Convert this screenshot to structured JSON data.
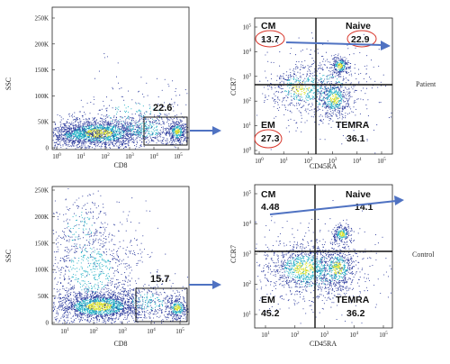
{
  "colors": {
    "arrow": "#4f72c2",
    "highlight_oval": "#d8362b",
    "density_low": "#2b3a9c",
    "density_mid": "#21b0c4",
    "density_high": "#d8e02a"
  },
  "rows": [
    {
      "condition_label": "Patient",
      "scatter": {
        "xlabel": "CD8",
        "ylabel": "SSC",
        "ytick_labels": [
          "0",
          "50K",
          "100K",
          "150K",
          "200K",
          "250K"
        ],
        "xtick_labels": [
          "10^0",
          "10^1",
          "10^2",
          "10^3",
          "10^4",
          "10^5"
        ],
        "gate_value": "22.6"
      },
      "quadrant": {
        "xlabel": "CD45RA",
        "ylabel": "CCR7",
        "ytick_labels": [
          "10^0",
          "10^1",
          "10^2",
          "10^3",
          "10^4",
          "10^5"
        ],
        "xtick_labels": [
          "10^0",
          "10^1",
          "10^2",
          "10^3",
          "10^4",
          "10^5"
        ],
        "cm": {
          "label": "CM",
          "value": "13.7"
        },
        "naive": {
          "label": "Naive",
          "value": "22.9"
        },
        "em": {
          "label": "EM",
          "value": "27.3"
        },
        "temra": {
          "label": "TEMRA",
          "value": "36.1"
        }
      }
    },
    {
      "condition_label": "Control",
      "scatter": {
        "xlabel": "CD8",
        "ylabel": "SSC",
        "ytick_labels": [
          "0",
          "50K",
          "100K",
          "150K",
          "200K",
          "250K"
        ],
        "xtick_labels": [
          "10^1",
          "10^2",
          "10^3",
          "10^4",
          "10^5"
        ],
        "gate_value": "15.7"
      },
      "quadrant": {
        "xlabel": "CD45RA",
        "ylabel": "CCR7",
        "ytick_labels": [
          "10^1",
          "10^2",
          "10^3",
          "10^4",
          "10^5"
        ],
        "xtick_labels": [
          "10^1",
          "10^2",
          "10^3",
          "10^4",
          "10^5"
        ],
        "cm": {
          "label": "CM",
          "value": "4.48"
        },
        "naive": {
          "label": "Naive",
          "value": "14.1"
        },
        "em": {
          "label": "EM",
          "value": "45.2"
        },
        "temra": {
          "label": "TEMRA",
          "value": "36.2"
        }
      }
    }
  ]
}
